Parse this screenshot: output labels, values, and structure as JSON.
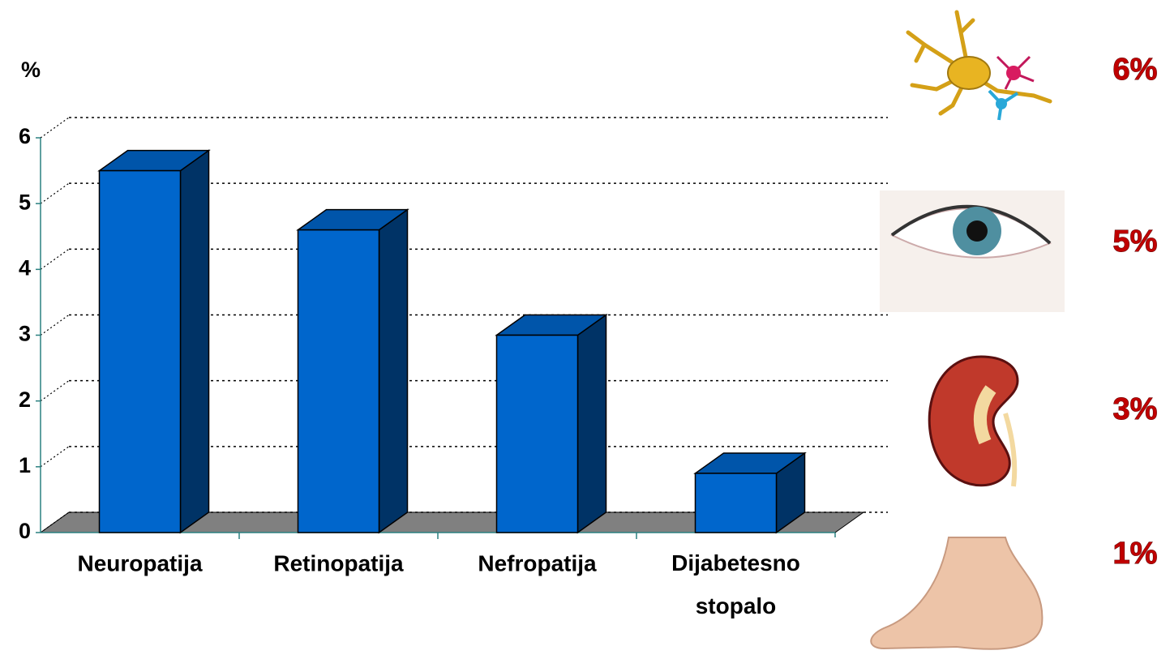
{
  "chart_data": {
    "type": "bar3d",
    "y_label": "%",
    "categories": [
      "Neuropatija",
      "Retinopatija",
      "Nefropatija",
      "Dijabetesno stopalo"
    ],
    "values": [
      5.5,
      4.6,
      3.0,
      0.9
    ],
    "color": "#0066cc",
    "ylim": [
      0,
      6
    ],
    "yticks": [
      0,
      1,
      2,
      3,
      4,
      5,
      6
    ],
    "grid": true,
    "annotations": [
      "6%",
      "5%",
      "3%",
      "1%"
    ]
  }
}
